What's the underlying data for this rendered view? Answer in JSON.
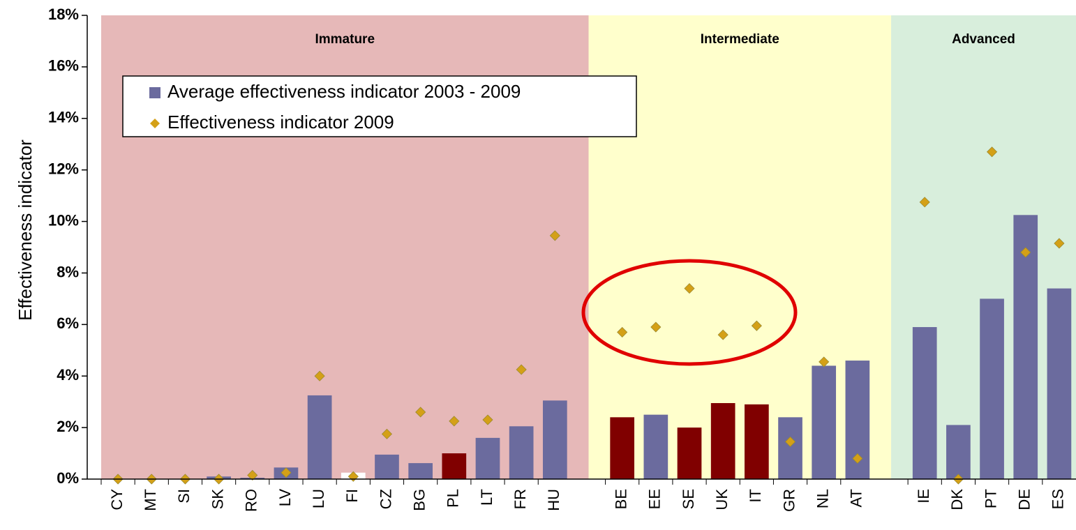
{
  "chart_data": {
    "type": "bar",
    "y_label": "Effectiveness indicator",
    "categories": [
      "CY",
      "MT",
      "SI",
      "SK",
      "RO",
      "LV",
      "LU",
      "FI",
      "CZ",
      "BG",
      "PL",
      "LT",
      "FR",
      "HU",
      null,
      "BE",
      "EE",
      "SE",
      "UK",
      "IT",
      "GR",
      "NL",
      "AT",
      null,
      "IE",
      "DK",
      "PT",
      "DE",
      "ES"
    ],
    "regions": [
      {
        "label": "Immature",
        "color": "#e6b8b8"
      },
      {
        "label": "Intermediate",
        "color": "#ffffcc"
      },
      {
        "label": "Advanced",
        "color": "#d8eedc"
      }
    ],
    "series": [
      {
        "name": "Average effectiveness indicator 2003 - 2009",
        "color": "#6b6b9e",
        "marker": "bar",
        "values": [
          0,
          0,
          0,
          0.1,
          0.05,
          0.45,
          3.25,
          0.25,
          0.95,
          0.62,
          1.0,
          1.6,
          2.05,
          3.05,
          null,
          2.4,
          2.5,
          2.0,
          2.95,
          2.9,
          2.4,
          4.4,
          4.6,
          null,
          5.9,
          2.1,
          7.0,
          10.25,
          7.4
        ],
        "bar_colors": [
          "#6b6b9e",
          "#6b6b9e",
          "#6b6b9e",
          "#6b6b9e",
          "#6b6b9e",
          "#6b6b9e",
          "#6b6b9e",
          "#ffffff",
          "#6b6b9e",
          "#6b6b9e",
          "#800000",
          "#6b6b9e",
          "#6b6b9e",
          "#6b6b9e",
          null,
          "#800000",
          "#6b6b9e",
          "#800000",
          "#800000",
          "#800000",
          "#6b6b9e",
          "#6b6b9e",
          "#6b6b9e",
          null,
          "#6b6b9e",
          "#6b6b9e",
          "#6b6b9e",
          "#6b6b9e",
          "#6b6b9e"
        ]
      },
      {
        "name": "Effectiveness indicator 2009",
        "color": "#d4a017",
        "marker": "diamond",
        "values": [
          0,
          0,
          0,
          0,
          0.15,
          0.25,
          4.0,
          0.1,
          1.75,
          2.6,
          2.25,
          2.3,
          4.25,
          9.45,
          null,
          5.7,
          5.9,
          7.4,
          5.6,
          5.95,
          1.45,
          4.55,
          0.8,
          null,
          10.75,
          0,
          12.7,
          8.8,
          9.15
        ]
      }
    ],
    "ylim": [
      0,
      18
    ],
    "yticks": [
      {
        "value": 0,
        "label": "0%"
      },
      {
        "value": 2,
        "label": "2%"
      },
      {
        "value": 4,
        "label": "4%"
      },
      {
        "value": 6,
        "label": "6%"
      },
      {
        "value": 8,
        "label": "8%"
      },
      {
        "value": 10,
        "label": "10%"
      },
      {
        "value": 12,
        "label": "12%"
      },
      {
        "value": 14,
        "label": "14%"
      },
      {
        "value": 16,
        "label": "16%"
      },
      {
        "value": 18,
        "label": "18%"
      }
    ]
  }
}
